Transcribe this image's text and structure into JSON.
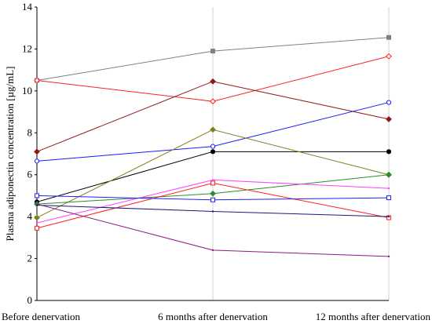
{
  "chart_data": {
    "type": "line",
    "categories": [
      "Before denervation",
      "6 months after denervation",
      "12 months after denervation"
    ],
    "ylabel": "Plasma adiponectin concentration [µg/mL]",
    "xlabel": "",
    "title": "",
    "ylim": [
      0,
      14
    ],
    "yticks": [
      0,
      2,
      4,
      6,
      8,
      10,
      12,
      14
    ],
    "grid": "vertical",
    "legend": "none",
    "series": [
      {
        "color": "#808080",
        "marker": "square",
        "values": [
          10.5,
          11.9,
          12.55
        ]
      },
      {
        "color": "#ff2020",
        "marker": "diamond-open",
        "values": [
          10.5,
          9.5,
          11.65
        ]
      },
      {
        "color": "#8b1a1a",
        "marker": "diamond",
        "values": [
          7.1,
          10.45,
          8.65
        ]
      },
      {
        "color": "#1a1aff",
        "marker": "circle-open",
        "values": [
          6.65,
          7.35,
          9.45
        ]
      },
      {
        "color": "#000000",
        "marker": "circle",
        "values": [
          4.7,
          7.1,
          7.1
        ]
      },
      {
        "color": "#808020",
        "marker": "diamond",
        "values": [
          3.95,
          8.15,
          6.0
        ]
      },
      {
        "color": "#2e8b2e",
        "marker": "diamond",
        "values": [
          4.6,
          5.1,
          6.0
        ]
      },
      {
        "color": "#ff40ff",
        "marker": "none",
        "values": [
          3.7,
          5.75,
          5.35
        ]
      },
      {
        "color": "#ff2020",
        "marker": "square-open",
        "values": [
          3.45,
          5.6,
          3.95
        ]
      },
      {
        "color": "#2020ff",
        "marker": "square-open",
        "values": [
          5.0,
          4.8,
          4.9
        ]
      },
      {
        "color": "#1a1a7a",
        "marker": "none",
        "values": [
          4.55,
          4.25,
          4.0
        ]
      },
      {
        "color": "#8b1a8b",
        "marker": "none",
        "values": [
          4.6,
          2.4,
          2.1
        ]
      }
    ]
  }
}
